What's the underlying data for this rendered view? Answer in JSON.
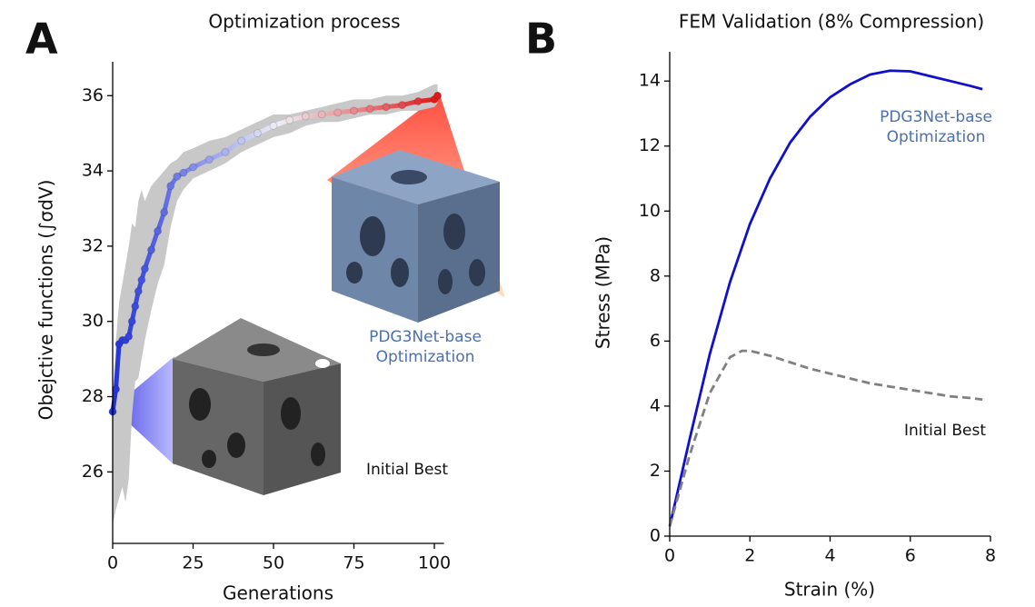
{
  "chart_data": [
    {
      "type": "line",
      "panel_label": "A",
      "title": "Optimization process",
      "x_label": "Generations",
      "y_label": "Obejctive functions (∫σdV)",
      "xlim": [
        0,
        103
      ],
      "ylim": [
        24.1,
        36.9
      ],
      "xticks": [
        0,
        25,
        50,
        75,
        100
      ],
      "yticks": [
        26,
        28,
        30,
        32,
        34,
        36
      ],
      "cmap": [
        "#2030d8",
        "#eef0f8",
        "#dd1010"
      ],
      "series": [
        {
          "x": [
            0,
            1,
            2,
            3,
            4,
            5,
            6,
            7,
            8,
            9,
            10,
            12,
            14,
            16,
            18,
            20,
            22,
            25,
            30,
            35,
            40,
            45,
            50,
            55,
            60,
            65,
            70,
            75,
            80,
            85,
            90,
            95,
            100,
            101
          ],
          "values": [
            27.6,
            28.2,
            29.4,
            29.5,
            29.5,
            29.6,
            30.0,
            30.4,
            30.8,
            31.1,
            31.4,
            31.9,
            32.4,
            32.9,
            33.6,
            33.85,
            33.95,
            34.1,
            34.3,
            34.5,
            34.8,
            35.0,
            35.2,
            35.35,
            35.45,
            35.5,
            35.55,
            35.6,
            35.65,
            35.7,
            35.75,
            35.85,
            35.9,
            36.0
          ],
          "band": {
            "color": "#c8c8c8",
            "low": [
              24.6,
              25.0,
              25.3,
              25.6,
              25.2,
              25.8,
              27.5,
              28.4,
              28.5,
              29.0,
              29.5,
              30.3,
              31.0,
              31.5,
              32.5,
              33.2,
              33.5,
              33.8,
              34.0,
              34.2,
              34.5,
              34.7,
              34.9,
              35.0,
              35.2,
              35.3,
              35.3,
              35.4,
              35.5,
              35.5,
              35.6,
              35.6,
              35.7,
              35.8
            ],
            "high": [
              28.0,
              29.5,
              30.5,
              31.0,
              31.5,
              32.0,
              32.6,
              32.5,
              33.2,
              33.5,
              33.2,
              33.6,
              33.8,
              34.0,
              34.2,
              34.3,
              34.5,
              34.6,
              34.8,
              34.9,
              35.1,
              35.3,
              35.5,
              35.5,
              35.6,
              35.7,
              35.8,
              35.9,
              35.9,
              36.0,
              36.0,
              36.1,
              36.3,
              36.3
            ]
          }
        }
      ],
      "annotations": [
        {
          "text": "PDG3Net-base Optimization",
          "color": "#4a70b0"
        },
        {
          "text": "Initial Best",
          "color": "#111111"
        }
      ]
    },
    {
      "type": "line",
      "panel_label": "B",
      "title": "FEM Validation (8% Compression)",
      "x_label": "Strain (%)",
      "y_label": "Stress (MPa)",
      "xlim": [
        0,
        8
      ],
      "ylim": [
        0,
        14.9
      ],
      "xticks": [
        0,
        2,
        4,
        6,
        8
      ],
      "yticks": [
        0,
        2,
        4,
        6,
        8,
        10,
        12,
        14
      ],
      "series": [
        {
          "name": "PDG3Net-base Optimization",
          "color": "#1010cc",
          "label_color": "#4a70b0",
          "dash": "solid",
          "x": [
            0,
            0.5,
            1,
            1.5,
            2,
            2.5,
            3,
            3.5,
            4,
            4.5,
            5,
            5.5,
            6,
            6.5,
            7,
            7.5,
            7.8
          ],
          "values": [
            0.3,
            3.0,
            5.6,
            7.8,
            9.6,
            11.0,
            12.1,
            12.9,
            13.5,
            13.9,
            14.2,
            14.32,
            14.3,
            14.15,
            14.0,
            13.85,
            13.75
          ]
        },
        {
          "name": "Initial Best",
          "color": "#808080",
          "label_color": "#111111",
          "dash": "dashed",
          "x": [
            0,
            0.5,
            1,
            1.5,
            1.8,
            2,
            2.5,
            3,
            3.5,
            4,
            4.5,
            5,
            5.5,
            6,
            6.5,
            7,
            7.5,
            7.8
          ],
          "values": [
            0.3,
            2.5,
            4.4,
            5.5,
            5.7,
            5.7,
            5.55,
            5.35,
            5.15,
            5.0,
            4.85,
            4.7,
            4.6,
            4.5,
            4.4,
            4.3,
            4.25,
            4.2
          ]
        }
      ]
    }
  ]
}
